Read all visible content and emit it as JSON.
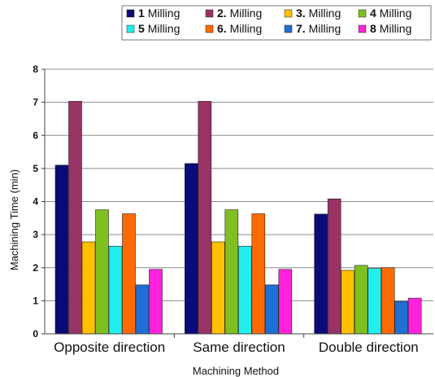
{
  "chart_data": {
    "type": "bar",
    "title": "",
    "xlabel": "Machining Method",
    "ylabel": "Machining Time (min)",
    "ylim": [
      0,
      8
    ],
    "yticks": [
      0,
      1,
      2,
      3,
      4,
      5,
      6,
      7,
      8
    ],
    "grid": true,
    "legend_placement": "top-right",
    "categories": [
      "Opposite direction",
      "Same direction",
      "Double direction"
    ],
    "series": [
      {
        "name": "1 Milling",
        "num": "1",
        "text": "Milling",
        "color": "#0a0a78",
        "values": [
          5.1,
          5.15,
          3.62
        ]
      },
      {
        "name": "2. Milling",
        "num": "2.",
        "text": "Milling",
        "color": "#993366",
        "values": [
          7.03,
          7.03,
          4.08
        ]
      },
      {
        "name": "3. Milling",
        "num": "3.",
        "text": "Milling",
        "color": "#ffc000",
        "values": [
          2.78,
          2.78,
          1.92
        ]
      },
      {
        "name": "4 Milling",
        "num": "4",
        "text": "Milling",
        "color": "#80bf20",
        "values": [
          3.75,
          3.75,
          2.07
        ]
      },
      {
        "name": "5 Milling",
        "num": "5",
        "text": "Milling",
        "color": "#22eeee",
        "values": [
          2.65,
          2.65,
          1.98
        ]
      },
      {
        "name": "6. Milling",
        "num": "6.",
        "text": "Milling",
        "color": "#ff6a00",
        "values": [
          3.63,
          3.63,
          2.0
        ]
      },
      {
        "name": "7. Milling",
        "num": "7.",
        "text": "Milling",
        "color": "#1f6fd6",
        "values": [
          1.48,
          1.48,
          0.98
        ]
      },
      {
        "name": "8 Milling",
        "num": "8",
        "text": "Milling",
        "color": "#ff22dd",
        "values": [
          1.95,
          1.95,
          1.08
        ]
      }
    ]
  }
}
